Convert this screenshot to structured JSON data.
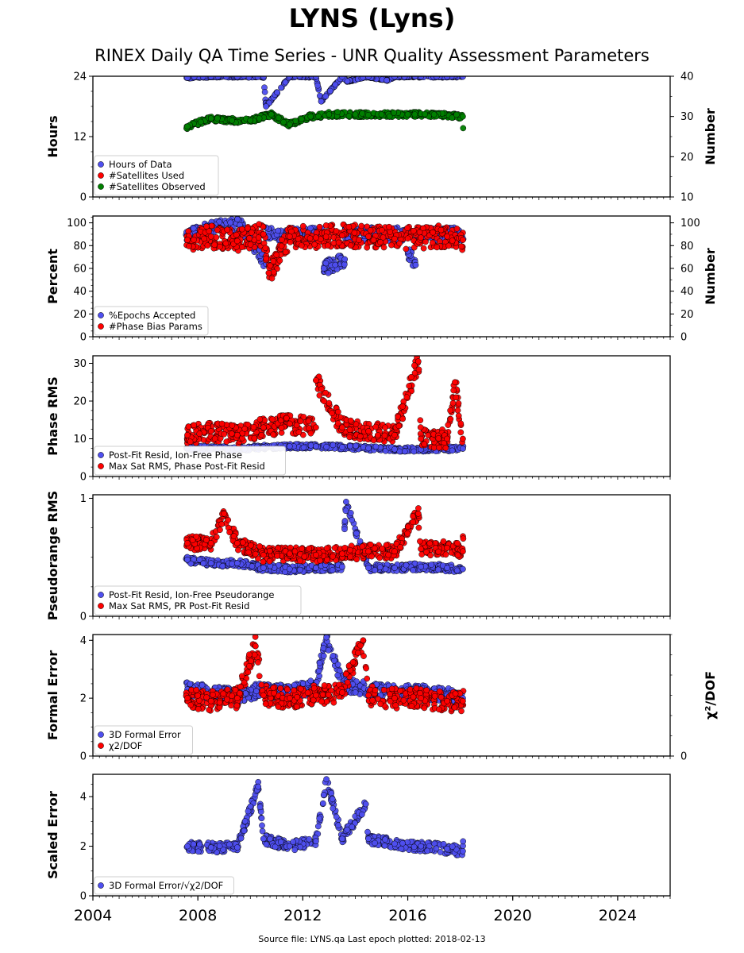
{
  "title": "LYNS (Lyns)",
  "subtitle": "RINEX Daily QA Time Series - UNR Quality Assessment Parameters",
  "footer": "Source file: LYNS.qa Last epoch plotted: 2018-02-13",
  "colors": {
    "blue": "#4f4fef",
    "red": "#ff0000",
    "green": "#008000"
  },
  "chart_data": [
    {
      "type": "scatter",
      "xlim": [
        2004,
        2026
      ],
      "x_ticks": [
        2004,
        2008,
        2012,
        2016,
        2020,
        2024
      ],
      "ylabel": "Hours",
      "ylim": [
        0,
        24
      ],
      "y_ticks": [
        0,
        12,
        24
      ],
      "right_ylabel": "Number",
      "right_ylim": [
        10,
        40
      ],
      "right_y_ticks": [
        10,
        20,
        30,
        40
      ],
      "legend_position": "lower-left",
      "series": [
        {
          "name": "Hours of Data",
          "color": "blue",
          "axis": "left",
          "x": [
            2007.6,
            2008.5,
            2009.5,
            2010.5,
            2011.5,
            2012.5,
            2013.5,
            2014.5,
            2015.5,
            2016.5,
            2017.5,
            2018.1,
            2010.6,
            2012.7,
            2013.7,
            2015.2
          ],
          "y": [
            23.7,
            23.9,
            23.9,
            23.9,
            23.9,
            23.9,
            23.9,
            23.9,
            23.9,
            23.9,
            23.9,
            23.9,
            18.0,
            19.0,
            23.0,
            23.2
          ]
        },
        {
          "name": "#Satellites Used",
          "color": "red",
          "axis": "right",
          "x": [],
          "y": []
        },
        {
          "name": "#Satellites Observed",
          "color": "green",
          "axis": "right",
          "x": [
            2007.6,
            2008.5,
            2009.3,
            2010.0,
            2010.8,
            2011.5,
            2012.3,
            2013.0,
            2014.0,
            2015.0,
            2016.0,
            2017.0,
            2018.1
          ],
          "y": [
            27.5,
            29.5,
            29.0,
            29.0,
            30.5,
            28.0,
            30.0,
            30.5,
            30.5,
            30.5,
            30.5,
            30.5,
            30.0
          ]
        }
      ]
    },
    {
      "type": "scatter",
      "xlim": [
        2004,
        2026
      ],
      "x_ticks": [
        2004,
        2008,
        2012,
        2016,
        2020,
        2024
      ],
      "ylabel": "Percent",
      "ylim": [
        0,
        106
      ],
      "y_ticks": [
        0,
        20,
        40,
        60,
        80,
        100
      ],
      "right_ylabel": "Number",
      "right_ylim": [
        0,
        106
      ],
      "right_y_ticks": [
        0,
        20,
        40,
        60,
        80,
        100
      ],
      "legend_position": "lower-left",
      "series": [
        {
          "name": "%Epochs Accepted",
          "color": "blue",
          "x": [
            2007.7,
            2008.6,
            2009.6,
            2010.6,
            2012.8,
            2013.6,
            2016.0,
            2016.3
          ],
          "y": [
            90,
            96,
            98,
            64,
            60,
            68,
            75,
            63
          ]
        },
        {
          "name": "#Phase Bias Params",
          "color": "red",
          "x": [
            2007.6,
            2008.5,
            2009.5,
            2010.5,
            2011.5,
            2012.5,
            2013.5,
            2014.5,
            2015.5,
            2016.5,
            2017.5,
            2018.1,
            2010.7
          ],
          "y": [
            85,
            88,
            84,
            90,
            88,
            87,
            89,
            88,
            86,
            87,
            88,
            85,
            56
          ]
        }
      ]
    },
    {
      "type": "scatter",
      "xlim": [
        2004,
        2026
      ],
      "x_ticks": [
        2004,
        2008,
        2012,
        2016,
        2020,
        2024
      ],
      "ylabel": "Phase RMS",
      "ylim": [
        0,
        32
      ],
      "y_ticks": [
        0,
        10,
        20,
        30
      ],
      "legend_position": "lower-left",
      "series": [
        {
          "name": "Post-Fit Resid, Ion-Free Phase",
          "color": "blue",
          "x": [
            2007.6,
            2008.5,
            2009.5,
            2010.5,
            2011.5,
            2012.5,
            2013.5,
            2014.5,
            2015.5,
            2016.5,
            2017.5,
            2018.1
          ],
          "y": [
            7.5,
            7.5,
            7.3,
            7.8,
            8.0,
            8.0,
            7.8,
            7.5,
            7.2,
            7.2,
            7.3,
            7.4
          ]
        },
        {
          "name": "Max Sat RMS, Phase Post-Fit Resid",
          "color": "red",
          "x": [
            2007.6,
            2008.5,
            2009.5,
            2010.5,
            2011.5,
            2012.5,
            2013.5,
            2014.5,
            2015.5,
            2016.5,
            2017.5,
            2018.1,
            2016.4,
            2012.5,
            2017.8
          ],
          "y": [
            11,
            12,
            11,
            13,
            14,
            13,
            13,
            12,
            11,
            10,
            10,
            10,
            30.5,
            25.5,
            25
          ]
        }
      ]
    },
    {
      "type": "scatter",
      "xlim": [
        2004,
        2026
      ],
      "x_ticks": [
        2004,
        2008,
        2012,
        2016,
        2020,
        2024
      ],
      "ylabel": "Pseudorange RMS",
      "ylim": [
        0,
        1.03
      ],
      "y_ticks": [
        0,
        1
      ],
      "legend_position": "lower-left",
      "series": [
        {
          "name": "Post-Fit Resid, Ion-Free Pseudorange",
          "color": "blue",
          "x": [
            2007.6,
            2008.5,
            2009.5,
            2010.5,
            2011.5,
            2012.5,
            2013.5,
            2014.5,
            2015.5,
            2016.5,
            2017.5,
            2018.1,
            2013.65
          ],
          "y": [
            0.48,
            0.45,
            0.45,
            0.41,
            0.4,
            0.41,
            0.42,
            0.41,
            0.41,
            0.42,
            0.41,
            0.4,
            0.97
          ]
        },
        {
          "name": "Max Sat RMS, PR Post-Fit Resid",
          "color": "red",
          "x": [
            2007.6,
            2008.5,
            2009.5,
            2010.5,
            2011.5,
            2012.5,
            2013.5,
            2014.5,
            2015.5,
            2016.5,
            2017.5,
            2018.1,
            2009.0,
            2016.4
          ],
          "y": [
            0.62,
            0.62,
            0.62,
            0.52,
            0.53,
            0.52,
            0.53,
            0.55,
            0.55,
            0.57,
            0.58,
            0.55,
            0.87,
            0.87
          ]
        }
      ]
    },
    {
      "type": "scatter",
      "xlim": [
        2004,
        2026
      ],
      "x_ticks": [
        2004,
        2008,
        2012,
        2016,
        2020,
        2024
      ],
      "ylabel": "Formal Error",
      "ylim": [
        0,
        4.2
      ],
      "y_ticks": [
        0,
        2,
        4
      ],
      "right_ylabel": "χ²/DOF",
      "right_ylim": [
        0,
        4.2
      ],
      "right_y_ticks": [
        0
      ],
      "legend_position": "lower-left",
      "series": [
        {
          "name": "3D Formal Error",
          "color": "blue",
          "x": [
            2007.6,
            2008.5,
            2009.5,
            2010.5,
            2011.5,
            2012.5,
            2013.5,
            2014.5,
            2015.5,
            2016.5,
            2017.5,
            2018.1,
            2012.9
          ],
          "y": [
            2.3,
            2.2,
            2.1,
            2.3,
            2.2,
            2.4,
            2.5,
            2.3,
            2.2,
            2.2,
            2.1,
            2.0,
            4.1
          ]
        },
        {
          "name": "χ2/DOF",
          "color": "red",
          "x": [
            2007.6,
            2008.5,
            2009.5,
            2010.5,
            2011.5,
            2012.5,
            2013.5,
            2014.5,
            2015.5,
            2016.5,
            2017.5,
            2018.1,
            2014.3,
            2010.2
          ],
          "y": [
            2.0,
            1.9,
            2.0,
            2.1,
            2.0,
            2.1,
            2.2,
            2.1,
            2.0,
            2.0,
            1.9,
            1.9,
            4.0,
            3.8
          ]
        }
      ]
    },
    {
      "type": "scatter",
      "xlim": [
        2004,
        2026
      ],
      "x_ticks": [
        2004,
        2008,
        2012,
        2016,
        2020,
        2024
      ],
      "ylabel": "Scaled Error",
      "ylim": [
        0,
        4.9
      ],
      "y_ticks": [
        0,
        2,
        4
      ],
      "legend_position": "lower-left",
      "series": [
        {
          "name": "3D Formal Error/√χ2/DOF",
          "color": "blue",
          "x": [
            2007.6,
            2008.5,
            2009.5,
            2010.5,
            2011.5,
            2012.5,
            2013.5,
            2014.5,
            2015.5,
            2016.5,
            2017.5,
            2018.1,
            2012.9,
            2010.3,
            2014.4
          ],
          "y": [
            2.0,
            1.95,
            1.95,
            2.3,
            2.0,
            2.2,
            2.3,
            2.3,
            2.1,
            2.0,
            1.9,
            1.8,
            4.7,
            4.4,
            3.7
          ]
        }
      ]
    }
  ]
}
